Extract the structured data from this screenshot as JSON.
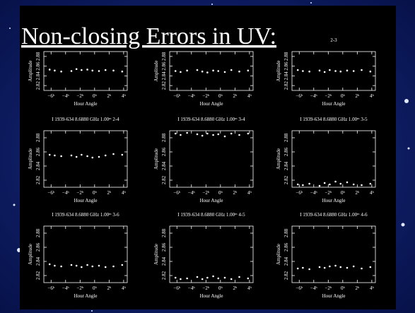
{
  "slide_title": "Non-closing Errors in UV:",
  "chart_data": [
    {
      "type": "scatter",
      "xlabel": "Hour Angle",
      "ylabel": "Amplitude",
      "color": "#ffffff",
      "x": [
        -6.2,
        -5.5,
        -4.6,
        -3.2,
        -2.5,
        -1.8,
        -1.0,
        -0.3,
        0.6,
        1.5,
        2.6,
        3.8
      ],
      "values": [
        2.853,
        2.851,
        2.849,
        2.85,
        2.854,
        2.852,
        2.853,
        2.851,
        2.85,
        2.852,
        2.851,
        2.849
      ],
      "xlim": [
        -7,
        4.5
      ],
      "ylim": [
        2.81,
        2.89
      ],
      "xticks": [
        {
          "value": -6,
          "label": "−6ʰ"
        },
        {
          "value": -4,
          "label": "−4ʰ"
        },
        {
          "value": -2,
          "label": "−2ʰ"
        },
        {
          "value": 0,
          "label": "0ʰ"
        },
        {
          "value": 2,
          "label": "2ʰ"
        },
        {
          "value": 4,
          "label": "4ʰ"
        }
      ],
      "yticks": [
        {
          "value": 2.82,
          "label": "2.82"
        },
        {
          "value": 2.84,
          "label": "2.84"
        },
        {
          "value": 2.86,
          "label": "2.86"
        },
        {
          "value": 2.88,
          "label": "2.88"
        }
      ]
    },
    {
      "type": "scatter",
      "xlabel": "Hour Angle",
      "ylabel": "Amplitude",
      "color": "#ffffff",
      "x": [
        -6.2,
        -5.5,
        -4.6,
        -3.2,
        -2.5,
        -1.8,
        -1.0,
        -0.3,
        0.6,
        1.5,
        2.6,
        3.8
      ],
      "values": [
        2.85,
        2.848,
        2.851,
        2.852,
        2.849,
        2.847,
        2.851,
        2.85,
        2.848,
        2.852,
        2.849,
        2.851
      ],
      "xlim": [
        -7,
        4.5
      ],
      "ylim": [
        2.81,
        2.89
      ],
      "xticks": [
        {
          "value": -6,
          "label": "−6ʰ"
        },
        {
          "value": -4,
          "label": "−4ʰ"
        },
        {
          "value": -2,
          "label": "−2ʰ"
        },
        {
          "value": 0,
          "label": "0ʰ"
        },
        {
          "value": 2,
          "label": "2ʰ"
        },
        {
          "value": 4,
          "label": "4ʰ"
        }
      ],
      "yticks": [
        {
          "value": 2.82,
          "label": "2.82"
        },
        {
          "value": 2.84,
          "label": "2.84"
        },
        {
          "value": 2.86,
          "label": "2.86"
        },
        {
          "value": 2.88,
          "label": "2.88"
        }
      ]
    },
    {
      "type": "scatter",
      "title": "2-3",
      "xlabel": "Hour Angle",
      "ylabel": "Amplitude",
      "color": "#ffffff",
      "x": [
        -6.2,
        -5.5,
        -4.6,
        -3.2,
        -2.5,
        -1.8,
        -1.0,
        -0.3,
        0.6,
        1.5,
        2.6,
        3.8
      ],
      "values": [
        2.852,
        2.85,
        2.849,
        2.851,
        2.848,
        2.852,
        2.85,
        2.849,
        2.851,
        2.85,
        2.852,
        2.849
      ],
      "xlim": [
        -7,
        4.5
      ],
      "ylim": [
        2.81,
        2.89
      ],
      "xticks": [
        {
          "value": -6,
          "label": "−6ʰ"
        },
        {
          "value": -4,
          "label": "−4ʰ"
        },
        {
          "value": -2,
          "label": "−2ʰ"
        },
        {
          "value": 0,
          "label": "0ʰ"
        },
        {
          "value": 2,
          "label": "2ʰ"
        },
        {
          "value": 4,
          "label": "4ʰ"
        }
      ],
      "yticks": [
        {
          "value": 2.82,
          "label": "2.82"
        },
        {
          "value": 2.84,
          "label": "2.84"
        },
        {
          "value": 2.86,
          "label": "2.86"
        },
        {
          "value": 2.88,
          "label": "2.88"
        }
      ]
    },
    {
      "type": "scatter",
      "title": "I 1939-634 8.6880 GHz 1.00ᵐ 2-4",
      "xlabel": "Hour Angle",
      "ylabel": "Amplitude",
      "color": "#ffffff",
      "x": [
        -6.2,
        -5.5,
        -4.6,
        -3.2,
        -2.5,
        -1.8,
        -1.0,
        -0.3,
        0.6,
        1.5,
        2.6,
        3.8
      ],
      "values": [
        2.856,
        2.855,
        2.854,
        2.855,
        2.853,
        2.856,
        2.854,
        2.852,
        2.853,
        2.855,
        2.857,
        2.856
      ],
      "xlim": [
        -7,
        4.5
      ],
      "ylim": [
        2.81,
        2.89
      ],
      "xticks": [
        {
          "value": -6,
          "label": "−6ʰ"
        },
        {
          "value": -4,
          "label": "−4ʰ"
        },
        {
          "value": -2,
          "label": "−2ʰ"
        },
        {
          "value": 0,
          "label": "0ʰ"
        },
        {
          "value": 2,
          "label": "2ʰ"
        },
        {
          "value": 4,
          "label": "4ʰ"
        }
      ],
      "yticks": [
        {
          "value": 2.82,
          "label": "2.82"
        },
        {
          "value": 2.84,
          "label": "2.84"
        },
        {
          "value": 2.86,
          "label": "2.86"
        },
        {
          "value": 2.88,
          "label": "2.88"
        }
      ]
    },
    {
      "type": "scatter",
      "title": "I 1939-634 8.6880 GHz 1.00ᵐ 3-4",
      "xlabel": "Hour Angle",
      "ylabel": "Amplitude",
      "color": "#ffffff",
      "x": [
        -6.2,
        -5.5,
        -4.6,
        -3.2,
        -2.5,
        -1.8,
        -1.0,
        -0.3,
        0.6,
        1.5,
        2.6,
        3.8
      ],
      "values": [
        2.886,
        2.884,
        2.887,
        2.885,
        2.883,
        2.886,
        2.884,
        2.885,
        2.882,
        2.886,
        2.884,
        2.886
      ],
      "xlim": [
        -7,
        4.5
      ],
      "ylim": [
        2.81,
        2.89
      ],
      "xticks": [
        {
          "value": -6,
          "label": "−6ʰ"
        },
        {
          "value": -4,
          "label": "−4ʰ"
        },
        {
          "value": -2,
          "label": "−2ʰ"
        },
        {
          "value": 0,
          "label": "0ʰ"
        },
        {
          "value": 2,
          "label": "2ʰ"
        },
        {
          "value": 4,
          "label": "4ʰ"
        }
      ],
      "yticks": [
        {
          "value": 2.82,
          "label": "2.82"
        },
        {
          "value": 2.84,
          "label": "2.84"
        },
        {
          "value": 2.86,
          "label": "2.86"
        },
        {
          "value": 2.88,
          "label": "2.88"
        }
      ]
    },
    {
      "type": "scatter",
      "title": "I 1939-634 8.6880 GHz 1.00ᵐ 3-5",
      "xlabel": "Hour Angle",
      "ylabel": "Amplitude",
      "color": "#ffffff",
      "x": [
        -6.2,
        -5.5,
        -4.6,
        -3.2,
        -2.5,
        -1.8,
        -1.0,
        -0.3,
        0.6,
        1.5,
        2.6,
        3.8
      ],
      "values": [
        2.814,
        2.813,
        2.815,
        2.812,
        2.816,
        2.814,
        2.818,
        2.815,
        2.817,
        2.814,
        2.813,
        2.815
      ],
      "xlim": [
        -7,
        4.5
      ],
      "ylim": [
        2.81,
        2.89
      ],
      "xticks": [
        {
          "value": -6,
          "label": "−6ʰ"
        },
        {
          "value": -4,
          "label": "−4ʰ"
        },
        {
          "value": -2,
          "label": "−2ʰ"
        },
        {
          "value": 0,
          "label": "0ʰ"
        },
        {
          "value": 2,
          "label": "2ʰ"
        },
        {
          "value": 4,
          "label": "4ʰ"
        }
      ],
      "yticks": [
        {
          "value": 2.82,
          "label": "2.82"
        },
        {
          "value": 2.84,
          "label": "2.84"
        },
        {
          "value": 2.86,
          "label": "2.86"
        },
        {
          "value": 2.88,
          "label": "2.88"
        }
      ]
    },
    {
      "type": "scatter",
      "title": "I 1939-634 8.6880 GHz 1.00ᵐ 3-6",
      "xlabel": "Hour Angle",
      "ylabel": "Amplitude",
      "color": "#ffffff",
      "x": [
        -6.2,
        -5.5,
        -4.6,
        -3.2,
        -2.5,
        -1.8,
        -1.0,
        -0.3,
        0.6,
        1.5,
        2.6,
        3.8
      ],
      "values": [
        2.836,
        2.834,
        2.833,
        2.835,
        2.834,
        2.832,
        2.835,
        2.833,
        2.834,
        2.832,
        2.833,
        2.835
      ],
      "xlim": [
        -7,
        4.5
      ],
      "ylim": [
        2.81,
        2.89
      ],
      "xticks": [
        {
          "value": -6,
          "label": "−6ʰ"
        },
        {
          "value": -4,
          "label": "−4ʰ"
        },
        {
          "value": -2,
          "label": "−2ʰ"
        },
        {
          "value": 0,
          "label": "0ʰ"
        },
        {
          "value": 2,
          "label": "2ʰ"
        },
        {
          "value": 4,
          "label": "4ʰ"
        }
      ],
      "yticks": [
        {
          "value": 2.82,
          "label": "2.82"
        },
        {
          "value": 2.84,
          "label": "2.84"
        },
        {
          "value": 2.86,
          "label": "2.86"
        },
        {
          "value": 2.88,
          "label": "2.88"
        }
      ]
    },
    {
      "type": "scatter",
      "title": "I 1939-634 8.6880 GHz 1.00ᵐ 4-5",
      "xlabel": "Hour Angle",
      "ylabel": "Amplitude",
      "color": "#ffffff",
      "x": [
        -6.2,
        -5.5,
        -4.6,
        -3.2,
        -2.5,
        -1.8,
        -1.0,
        -0.3,
        0.6,
        1.5,
        2.6,
        3.8
      ],
      "values": [
        2.817,
        2.815,
        2.816,
        2.818,
        2.815,
        2.817,
        2.819,
        2.816,
        2.817,
        2.815,
        2.818,
        2.816
      ],
      "xlim": [
        -7,
        4.5
      ],
      "ylim": [
        2.81,
        2.89
      ],
      "xticks": [
        {
          "value": -6,
          "label": "−6ʰ"
        },
        {
          "value": -4,
          "label": "−4ʰ"
        },
        {
          "value": -2,
          "label": "−2ʰ"
        },
        {
          "value": 0,
          "label": "0ʰ"
        },
        {
          "value": 2,
          "label": "2ʰ"
        },
        {
          "value": 4,
          "label": "4ʰ"
        }
      ],
      "yticks": [
        {
          "value": 2.82,
          "label": "2.82"
        },
        {
          "value": 2.84,
          "label": "2.84"
        },
        {
          "value": 2.86,
          "label": "2.86"
        },
        {
          "value": 2.88,
          "label": "2.88"
        }
      ]
    },
    {
      "type": "scatter",
      "title": "I 1939-634 8.6880 GHz 1.00ᵐ 4-6",
      "xlabel": "Hour Angle",
      "ylabel": "Amplitude",
      "color": "#ffffff",
      "x": [
        -6.2,
        -5.5,
        -4.6,
        -3.2,
        -2.5,
        -1.8,
        -1.0,
        -0.3,
        0.6,
        1.5,
        2.6,
        3.8
      ],
      "values": [
        2.83,
        2.831,
        2.829,
        2.832,
        2.831,
        2.833,
        2.834,
        2.832,
        2.831,
        2.833,
        2.83,
        2.832
      ],
      "xlim": [
        -7,
        4.5
      ],
      "ylim": [
        2.81,
        2.89
      ],
      "xticks": [
        {
          "value": -6,
          "label": "−6ʰ"
        },
        {
          "value": -4,
          "label": "−4ʰ"
        },
        {
          "value": -2,
          "label": "−2ʰ"
        },
        {
          "value": 0,
          "label": "0ʰ"
        },
        {
          "value": 2,
          "label": "2ʰ"
        },
        {
          "value": 4,
          "label": "4ʰ"
        }
      ],
      "yticks": [
        {
          "value": 2.82,
          "label": "2.82"
        },
        {
          "value": 2.84,
          "label": "2.84"
        },
        {
          "value": 2.86,
          "label": "2.86"
        },
        {
          "value": 2.88,
          "label": "2.88"
        }
      ]
    }
  ]
}
